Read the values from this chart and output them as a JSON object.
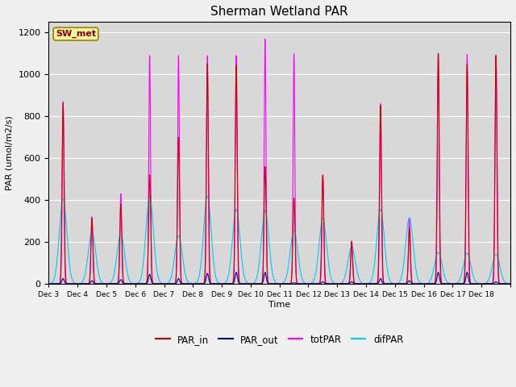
{
  "title": "Sherman Wetland PAR",
  "ylabel": "PAR (umol/m2/s)",
  "xlabel": "Time",
  "fig_facecolor": "#f0f0f0",
  "plot_bg_color": "#d8d8d8",
  "ylim": [
    0,
    1250
  ],
  "legend_label_box": "SW_met",
  "series": {
    "PAR_in": {
      "color": "#cc0000",
      "linewidth": 0.8
    },
    "PAR_out": {
      "color": "#000099",
      "linewidth": 0.8
    },
    "totPAR": {
      "color": "#ff00ff",
      "linewidth": 0.8
    },
    "difPAR": {
      "color": "#00ccee",
      "linewidth": 0.8
    }
  },
  "days": 16,
  "start_day": 3,
  "peaks_PAR_in": [
    860,
    310,
    380,
    520,
    700,
    1050,
    1045,
    560,
    410,
    520,
    200,
    850,
    265,
    1100,
    1050,
    1090
  ],
  "peaks_PAR_out": [
    25,
    15,
    20,
    45,
    25,
    50,
    55,
    55,
    5,
    10,
    10,
    25,
    15,
    55,
    55,
    10
  ],
  "peaks_totPAR": [
    870,
    320,
    430,
    1090,
    1090,
    1090,
    1090,
    1170,
    1100,
    520,
    205,
    860,
    315,
    1100,
    1095,
    1090
  ],
  "peaks_difPAR": [
    405,
    245,
    240,
    420,
    230,
    420,
    355,
    350,
    255,
    310,
    175,
    355,
    315,
    150,
    145,
    140
  ],
  "xtick_labels": [
    "Dec 3",
    "Dec 4",
    "Dec 5",
    "Dec 6",
    "Dec 7",
    "Dec 8",
    "Dec 9",
    "Dec 9",
    "Dec 10",
    "Dec 11",
    "Dec 12",
    "Dec 13",
    "Dec 14",
    "Dec 15",
    "Dec 16",
    "Dec 17",
    "Dec 18"
  ],
  "ytick_vals": [
    0,
    200,
    400,
    600,
    800,
    1000,
    1200
  ]
}
